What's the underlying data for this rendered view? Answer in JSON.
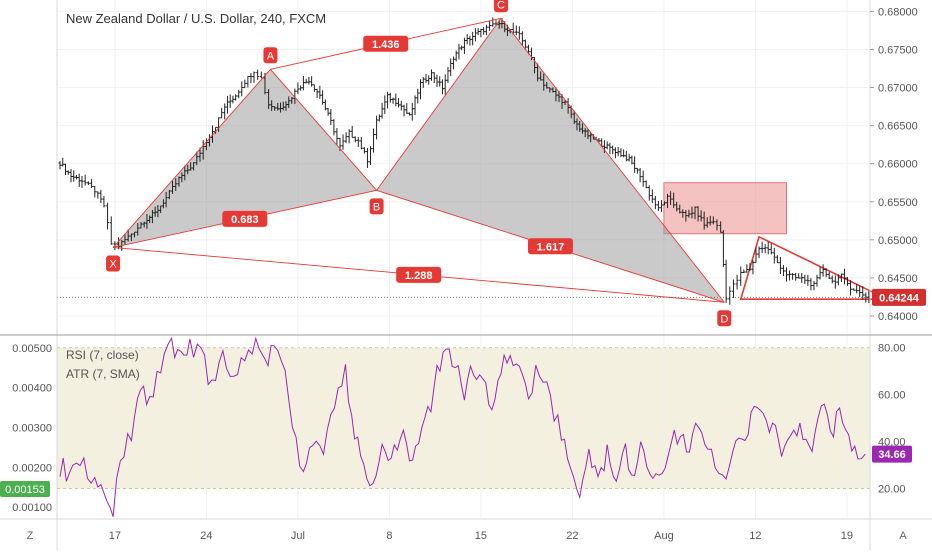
{
  "header": {
    "symbol": "New Zealand Dollar / U.S. Dollar, 240, FXCM"
  },
  "chart_data": [
    {
      "type": "candlestick",
      "title": "New Zealand Dollar / U.S. Dollar, 240, FXCM",
      "y_axis": {
        "ticks": [
          "0.68000",
          "0.67500",
          "0.67000",
          "0.66500",
          "0.66000",
          "0.65500",
          "0.65000",
          "0.64500",
          "0.64000"
        ],
        "tick_values": [
          0.68,
          0.675,
          0.67,
          0.665,
          0.66,
          0.655,
          0.65,
          0.645,
          0.64
        ],
        "ylim": [
          0.6375,
          0.6815
        ]
      },
      "x_axis": {
        "ticks": [
          "17",
          "24",
          "Jul",
          "8",
          "15",
          "22",
          "Aug",
          "12",
          "19"
        ],
        "tick_positions": [
          3,
          8,
          13,
          18,
          23,
          28,
          33,
          38,
          43
        ]
      },
      "price_line": {
        "value": 0.64244,
        "label": "0.64244",
        "color": "#d32f2f"
      },
      "close_path": [
        {
          "x": 0.0,
          "y": 0.6601
        },
        {
          "x": 0.6,
          "y": 0.6584
        },
        {
          "x": 1.2,
          "y": 0.6578
        },
        {
          "x": 1.9,
          "y": 0.6565
        },
        {
          "x": 2.4,
          "y": 0.6545
        },
        {
          "x": 2.8,
          "y": 0.6495
        },
        {
          "x": 3.2,
          "y": 0.6492
        },
        {
          "x": 3.9,
          "y": 0.6508
        },
        {
          "x": 4.6,
          "y": 0.6525
        },
        {
          "x": 5.2,
          "y": 0.6535
        },
        {
          "x": 5.8,
          "y": 0.6555
        },
        {
          "x": 6.5,
          "y": 0.658
        },
        {
          "x": 7.3,
          "y": 0.66
        },
        {
          "x": 8.0,
          "y": 0.663
        },
        {
          "x": 8.5,
          "y": 0.665
        },
        {
          "x": 9.0,
          "y": 0.6675
        },
        {
          "x": 9.6,
          "y": 0.669
        },
        {
          "x": 10.1,
          "y": 0.6708
        },
        {
          "x": 10.6,
          "y": 0.6722
        },
        {
          "x": 11.0,
          "y": 0.6712
        },
        {
          "x": 11.4,
          "y": 0.6678
        },
        {
          "x": 11.9,
          "y": 0.6672
        },
        {
          "x": 12.5,
          "y": 0.6682
        },
        {
          "x": 13.0,
          "y": 0.67
        },
        {
          "x": 13.6,
          "y": 0.671
        },
        {
          "x": 14.2,
          "y": 0.669
        },
        {
          "x": 14.8,
          "y": 0.6655
        },
        {
          "x": 15.3,
          "y": 0.6622
        },
        {
          "x": 15.8,
          "y": 0.664
        },
        {
          "x": 16.3,
          "y": 0.663
        },
        {
          "x": 16.8,
          "y": 0.6605
        },
        {
          "x": 17.3,
          "y": 0.6655
        },
        {
          "x": 17.9,
          "y": 0.6688
        },
        {
          "x": 18.5,
          "y": 0.668
        },
        {
          "x": 19.1,
          "y": 0.6662
        },
        {
          "x": 19.7,
          "y": 0.6705
        },
        {
          "x": 20.3,
          "y": 0.6718
        },
        {
          "x": 20.9,
          "y": 0.67
        },
        {
          "x": 21.5,
          "y": 0.674
        },
        {
          "x": 22.1,
          "y": 0.676
        },
        {
          "x": 22.7,
          "y": 0.677
        },
        {
          "x": 23.3,
          "y": 0.6778
        },
        {
          "x": 24.0,
          "y": 0.6784
        },
        {
          "x": 24.6,
          "y": 0.6775
        },
        {
          "x": 25.1,
          "y": 0.6768
        },
        {
          "x": 25.6,
          "y": 0.6748
        },
        {
          "x": 26.1,
          "y": 0.6715
        },
        {
          "x": 26.6,
          "y": 0.67
        },
        {
          "x": 27.1,
          "y": 0.669
        },
        {
          "x": 27.6,
          "y": 0.668
        },
        {
          "x": 28.1,
          "y": 0.6655
        },
        {
          "x": 28.7,
          "y": 0.664
        },
        {
          "x": 29.3,
          "y": 0.663
        },
        {
          "x": 29.9,
          "y": 0.6622
        },
        {
          "x": 30.5,
          "y": 0.6615
        },
        {
          "x": 31.1,
          "y": 0.6605
        },
        {
          "x": 31.7,
          "y": 0.6585
        },
        {
          "x": 32.2,
          "y": 0.656
        },
        {
          "x": 32.7,
          "y": 0.654
        },
        {
          "x": 33.2,
          "y": 0.6555
        },
        {
          "x": 33.7,
          "y": 0.6542
        },
        {
          "x": 34.2,
          "y": 0.653
        },
        {
          "x": 34.7,
          "y": 0.654
        },
        {
          "x": 35.2,
          "y": 0.652
        },
        {
          "x": 35.7,
          "y": 0.6525
        },
        {
          "x": 36.1,
          "y": 0.651
        },
        {
          "x": 36.4,
          "y": 0.6425
        },
        {
          "x": 36.8,
          "y": 0.644
        },
        {
          "x": 37.2,
          "y": 0.6455
        },
        {
          "x": 37.7,
          "y": 0.6462
        },
        {
          "x": 38.2,
          "y": 0.649
        },
        {
          "x": 38.7,
          "y": 0.6488
        },
        {
          "x": 39.2,
          "y": 0.647
        },
        {
          "x": 39.7,
          "y": 0.6455
        },
        {
          "x": 40.2,
          "y": 0.645
        },
        {
          "x": 40.7,
          "y": 0.6448
        },
        {
          "x": 41.2,
          "y": 0.644
        },
        {
          "x": 41.7,
          "y": 0.6462
        },
        {
          "x": 42.2,
          "y": 0.6445
        },
        {
          "x": 42.7,
          "y": 0.6452
        },
        {
          "x": 43.2,
          "y": 0.6438
        },
        {
          "x": 43.7,
          "y": 0.643
        },
        {
          "x": 44.2,
          "y": 0.64244
        }
      ],
      "pattern": {
        "name": "XABCD",
        "color": "#e53935",
        "points": [
          {
            "label": "X",
            "x": 2.9,
            "y": 0.649
          },
          {
            "label": "A",
            "x": 11.5,
            "y": 0.6724
          },
          {
            "label": "B",
            "x": 17.3,
            "y": 0.6565
          },
          {
            "label": "C",
            "x": 24.1,
            "y": 0.6791
          },
          {
            "label": "D",
            "x": 36.3,
            "y": 0.6418
          }
        ],
        "ratios": [
          {
            "label": "1.436",
            "from": "A",
            "to": "C"
          },
          {
            "label": "0.683",
            "from": "X",
            "to": "B"
          },
          {
            "label": "1.617",
            "from": "B",
            "to": "D"
          },
          {
            "label": "1.288",
            "from": "X",
            "to": "D"
          }
        ]
      },
      "annotations": {
        "rectangle": {
          "x0": 33.0,
          "x1": 39.7,
          "y0": 0.6508,
          "y1": 0.6575,
          "color": "#ef9a9a"
        },
        "triangle": {
          "points": [
            {
              "x": 38.2,
              "y": 0.6504
            },
            {
              "x": 45.2,
              "y": 0.6422
            },
            {
              "x": 37.2,
              "y": 0.6422
            }
          ]
        }
      }
    },
    {
      "type": "line",
      "series": [
        {
          "name": "RSI (7, close)",
          "color": "#9c27b0",
          "last_value": "34.66"
        },
        {
          "name": "ATR (7, SMA)",
          "last_value": "0.00153"
        }
      ],
      "rsi_axis": {
        "ticks": [
          "80.00",
          "60.00",
          "40.00",
          "20.00"
        ],
        "tick_values": [
          80,
          60,
          40,
          20
        ],
        "ylim": [
          7,
          85
        ]
      },
      "atr_axis": {
        "ticks": [
          "0.00500",
          "0.00400",
          "0.00300",
          "0.00200",
          "0.00100"
        ],
        "tick_values": [
          0.005,
          0.004,
          0.003,
          0.002,
          0.001
        ],
        "ylim": [
          0.0007,
          0.0053
        ]
      },
      "rsi_band": [
        20,
        80
      ],
      "rsi_path": [
        {
          "x": 0.0,
          "y": 30
        },
        {
          "x": 0.7,
          "y": 25
        },
        {
          "x": 1.3,
          "y": 33
        },
        {
          "x": 1.9,
          "y": 22
        },
        {
          "x": 2.4,
          "y": 15
        },
        {
          "x": 2.9,
          "y": 12
        },
        {
          "x": 3.3,
          "y": 35
        },
        {
          "x": 3.9,
          "y": 44
        },
        {
          "x": 4.4,
          "y": 62
        },
        {
          "x": 4.9,
          "y": 55
        },
        {
          "x": 5.5,
          "y": 70
        },
        {
          "x": 6.1,
          "y": 83
        },
        {
          "x": 6.6,
          "y": 74
        },
        {
          "x": 7.1,
          "y": 82
        },
        {
          "x": 7.7,
          "y": 78
        },
        {
          "x": 8.3,
          "y": 65
        },
        {
          "x": 8.9,
          "y": 74
        },
        {
          "x": 9.5,
          "y": 68
        },
        {
          "x": 10.1,
          "y": 76
        },
        {
          "x": 10.7,
          "y": 82
        },
        {
          "x": 11.2,
          "y": 74
        },
        {
          "x": 11.7,
          "y": 83
        },
        {
          "x": 12.3,
          "y": 70
        },
        {
          "x": 12.9,
          "y": 38
        },
        {
          "x": 13.3,
          "y": 28
        },
        {
          "x": 13.8,
          "y": 40
        },
        {
          "x": 14.4,
          "y": 34
        },
        {
          "x": 15.0,
          "y": 55
        },
        {
          "x": 15.6,
          "y": 70
        },
        {
          "x": 16.1,
          "y": 42
        },
        {
          "x": 16.6,
          "y": 30
        },
        {
          "x": 17.1,
          "y": 21
        },
        {
          "x": 17.6,
          "y": 35
        },
        {
          "x": 18.1,
          "y": 30
        },
        {
          "x": 18.6,
          "y": 46
        },
        {
          "x": 19.1,
          "y": 32
        },
        {
          "x": 19.6,
          "y": 40
        },
        {
          "x": 20.1,
          "y": 52
        },
        {
          "x": 20.6,
          "y": 68
        },
        {
          "x": 21.1,
          "y": 76
        },
        {
          "x": 21.6,
          "y": 72
        },
        {
          "x": 22.1,
          "y": 62
        },
        {
          "x": 22.6,
          "y": 70
        },
        {
          "x": 23.1,
          "y": 63
        },
        {
          "x": 23.6,
          "y": 55
        },
        {
          "x": 24.1,
          "y": 70
        },
        {
          "x": 24.6,
          "y": 78
        },
        {
          "x": 25.1,
          "y": 68
        },
        {
          "x": 25.6,
          "y": 60
        },
        {
          "x": 26.2,
          "y": 72
        },
        {
          "x": 26.8,
          "y": 58
        },
        {
          "x": 27.4,
          "y": 44
        },
        {
          "x": 27.9,
          "y": 30
        },
        {
          "x": 28.4,
          "y": 18
        },
        {
          "x": 28.9,
          "y": 34
        },
        {
          "x": 29.4,
          "y": 25
        },
        {
          "x": 29.9,
          "y": 36
        },
        {
          "x": 30.4,
          "y": 22
        },
        {
          "x": 30.9,
          "y": 35
        },
        {
          "x": 31.4,
          "y": 26
        },
        {
          "x": 31.9,
          "y": 40
        },
        {
          "x": 32.4,
          "y": 20
        },
        {
          "x": 32.9,
          "y": 26
        },
        {
          "x": 33.4,
          "y": 38
        },
        {
          "x": 33.9,
          "y": 45
        },
        {
          "x": 34.4,
          "y": 38
        },
        {
          "x": 34.9,
          "y": 46
        },
        {
          "x": 35.4,
          "y": 36
        },
        {
          "x": 35.8,
          "y": 33
        },
        {
          "x": 36.2,
          "y": 24
        },
        {
          "x": 36.6,
          "y": 32
        },
        {
          "x": 37.1,
          "y": 40
        },
        {
          "x": 37.6,
          "y": 46
        },
        {
          "x": 38.1,
          "y": 55
        },
        {
          "x": 38.6,
          "y": 48
        },
        {
          "x": 39.1,
          "y": 42
        },
        {
          "x": 39.6,
          "y": 36
        },
        {
          "x": 40.1,
          "y": 48
        },
        {
          "x": 40.6,
          "y": 44
        },
        {
          "x": 41.1,
          "y": 38
        },
        {
          "x": 41.6,
          "y": 56
        },
        {
          "x": 42.1,
          "y": 44
        },
        {
          "x": 42.6,
          "y": 50
        },
        {
          "x": 43.1,
          "y": 40
        },
        {
          "x": 43.6,
          "y": 36
        },
        {
          "x": 44.0,
          "y": 34.66
        }
      ]
    }
  ],
  "left_toolbar": {
    "z_button": "Z",
    "atr_readout": "0.00153"
  },
  "right_toolbar": {
    "a_button": "A"
  }
}
